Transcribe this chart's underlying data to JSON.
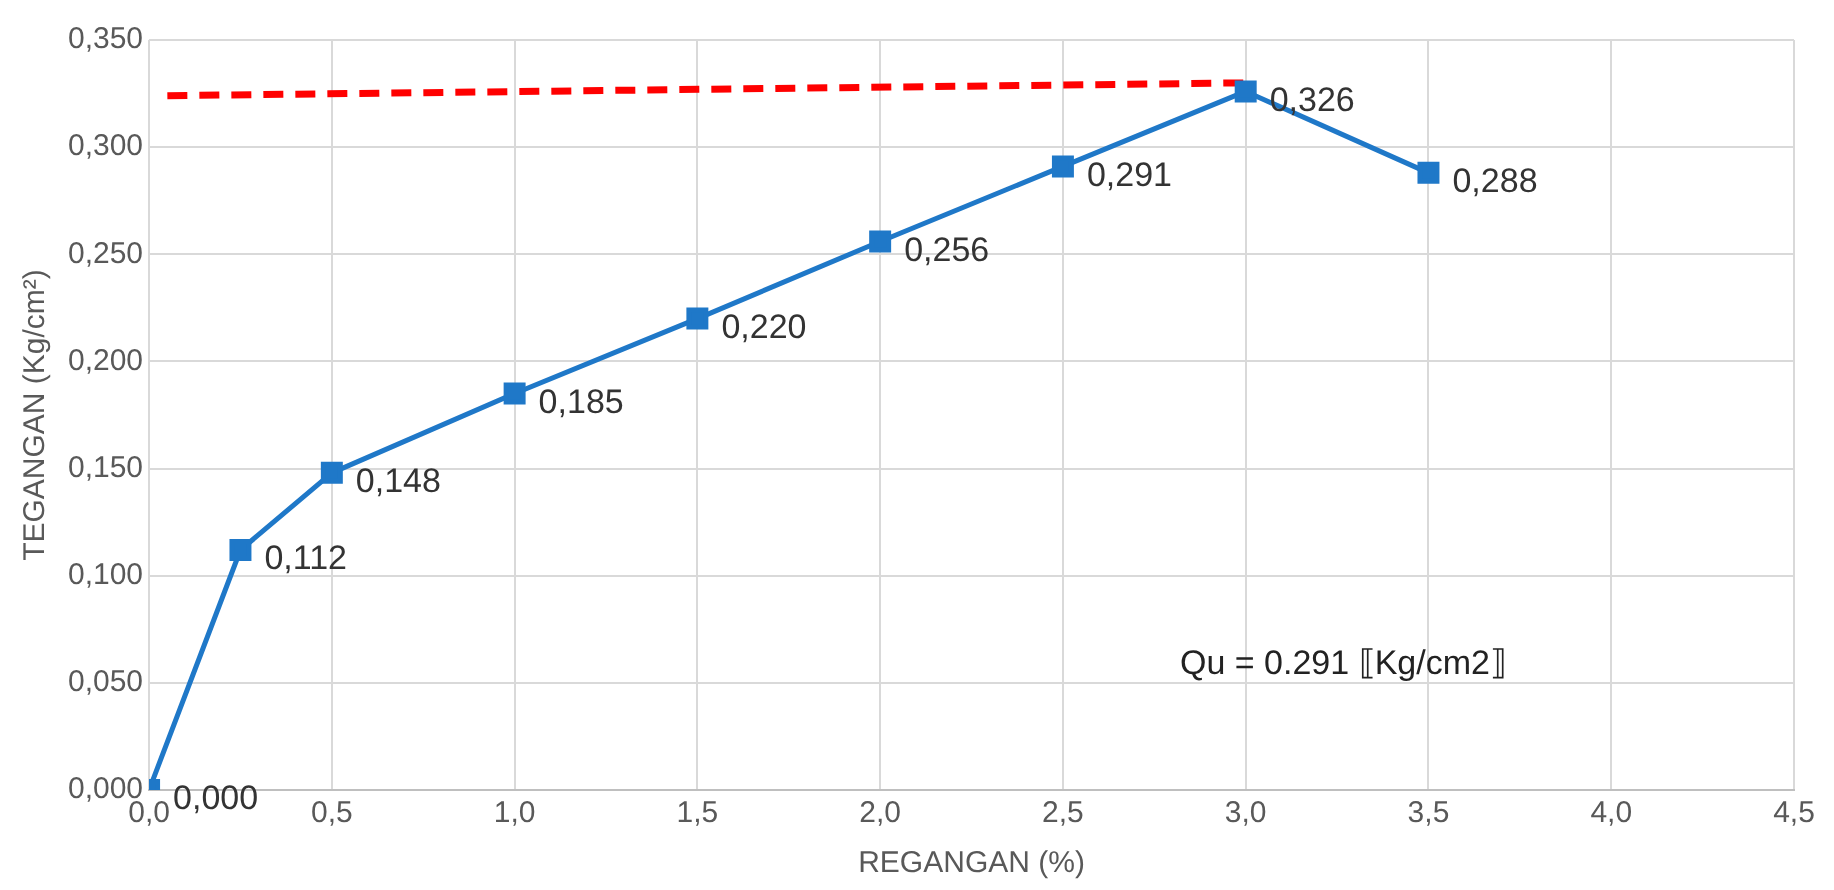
{
  "chart_data": {
    "type": "line",
    "xlabel": "REGANGAN (%)",
    "ylabel": "TEGANGAN (Kg/cm²)",
    "x": [
      0,
      0.25,
      0.5,
      1.0,
      1.5,
      2.0,
      2.5,
      3.0,
      3.5
    ],
    "series": [
      {
        "color": "#1f78c8",
        "marker": "square",
        "values": [
          0,
          0.112,
          0.148,
          0.185,
          0.22,
          0.256,
          0.291,
          0.326,
          0.288
        ],
        "value_labels": [
          "0,000",
          "0,112",
          "0,148",
          "0,185",
          "0,220",
          "0,256",
          "0,291",
          "0,326",
          "0,288"
        ]
      },
      {
        "type": "line",
        "color": "#ff0000",
        "marker": "none",
        "line_style": "dashed",
        "x": [
          0.05,
          3.0
        ],
        "values": [
          0.324,
          0.33
        ]
      }
    ],
    "xlim": [
      0,
      4.5
    ],
    "ylim": [
      0,
      0.35
    ],
    "xticks": [
      {
        "value": 0,
        "label": "0,0"
      },
      {
        "value": 0.5,
        "label": "0,5"
      },
      {
        "value": 1,
        "label": "1,0"
      },
      {
        "value": 1.5,
        "label": "1,5"
      },
      {
        "value": 2,
        "label": "2,0"
      },
      {
        "value": 2.5,
        "label": "2,5"
      },
      {
        "value": 3,
        "label": "3,0"
      },
      {
        "value": 3.5,
        "label": "3,5"
      },
      {
        "value": 4,
        "label": "4,0"
      },
      {
        "value": 4.5,
        "label": "4,5"
      }
    ],
    "yticks": [
      {
        "value": 0,
        "label": "0,000"
      },
      {
        "value": 0.05,
        "label": "0,050"
      },
      {
        "value": 0.1,
        "label": "0,100"
      },
      {
        "value": 0.15,
        "label": "0,150"
      },
      {
        "value": 0.2,
        "label": "0,200"
      },
      {
        "value": 0.25,
        "label": "0,250"
      },
      {
        "value": 0.3,
        "label": "0,300"
      },
      {
        "value": 0.35,
        "label": "0,350"
      }
    ],
    "grid": true,
    "legend": false,
    "annotations": [
      "Qu = 0.291 ⟦Kg/cm2⟧"
    ]
  }
}
